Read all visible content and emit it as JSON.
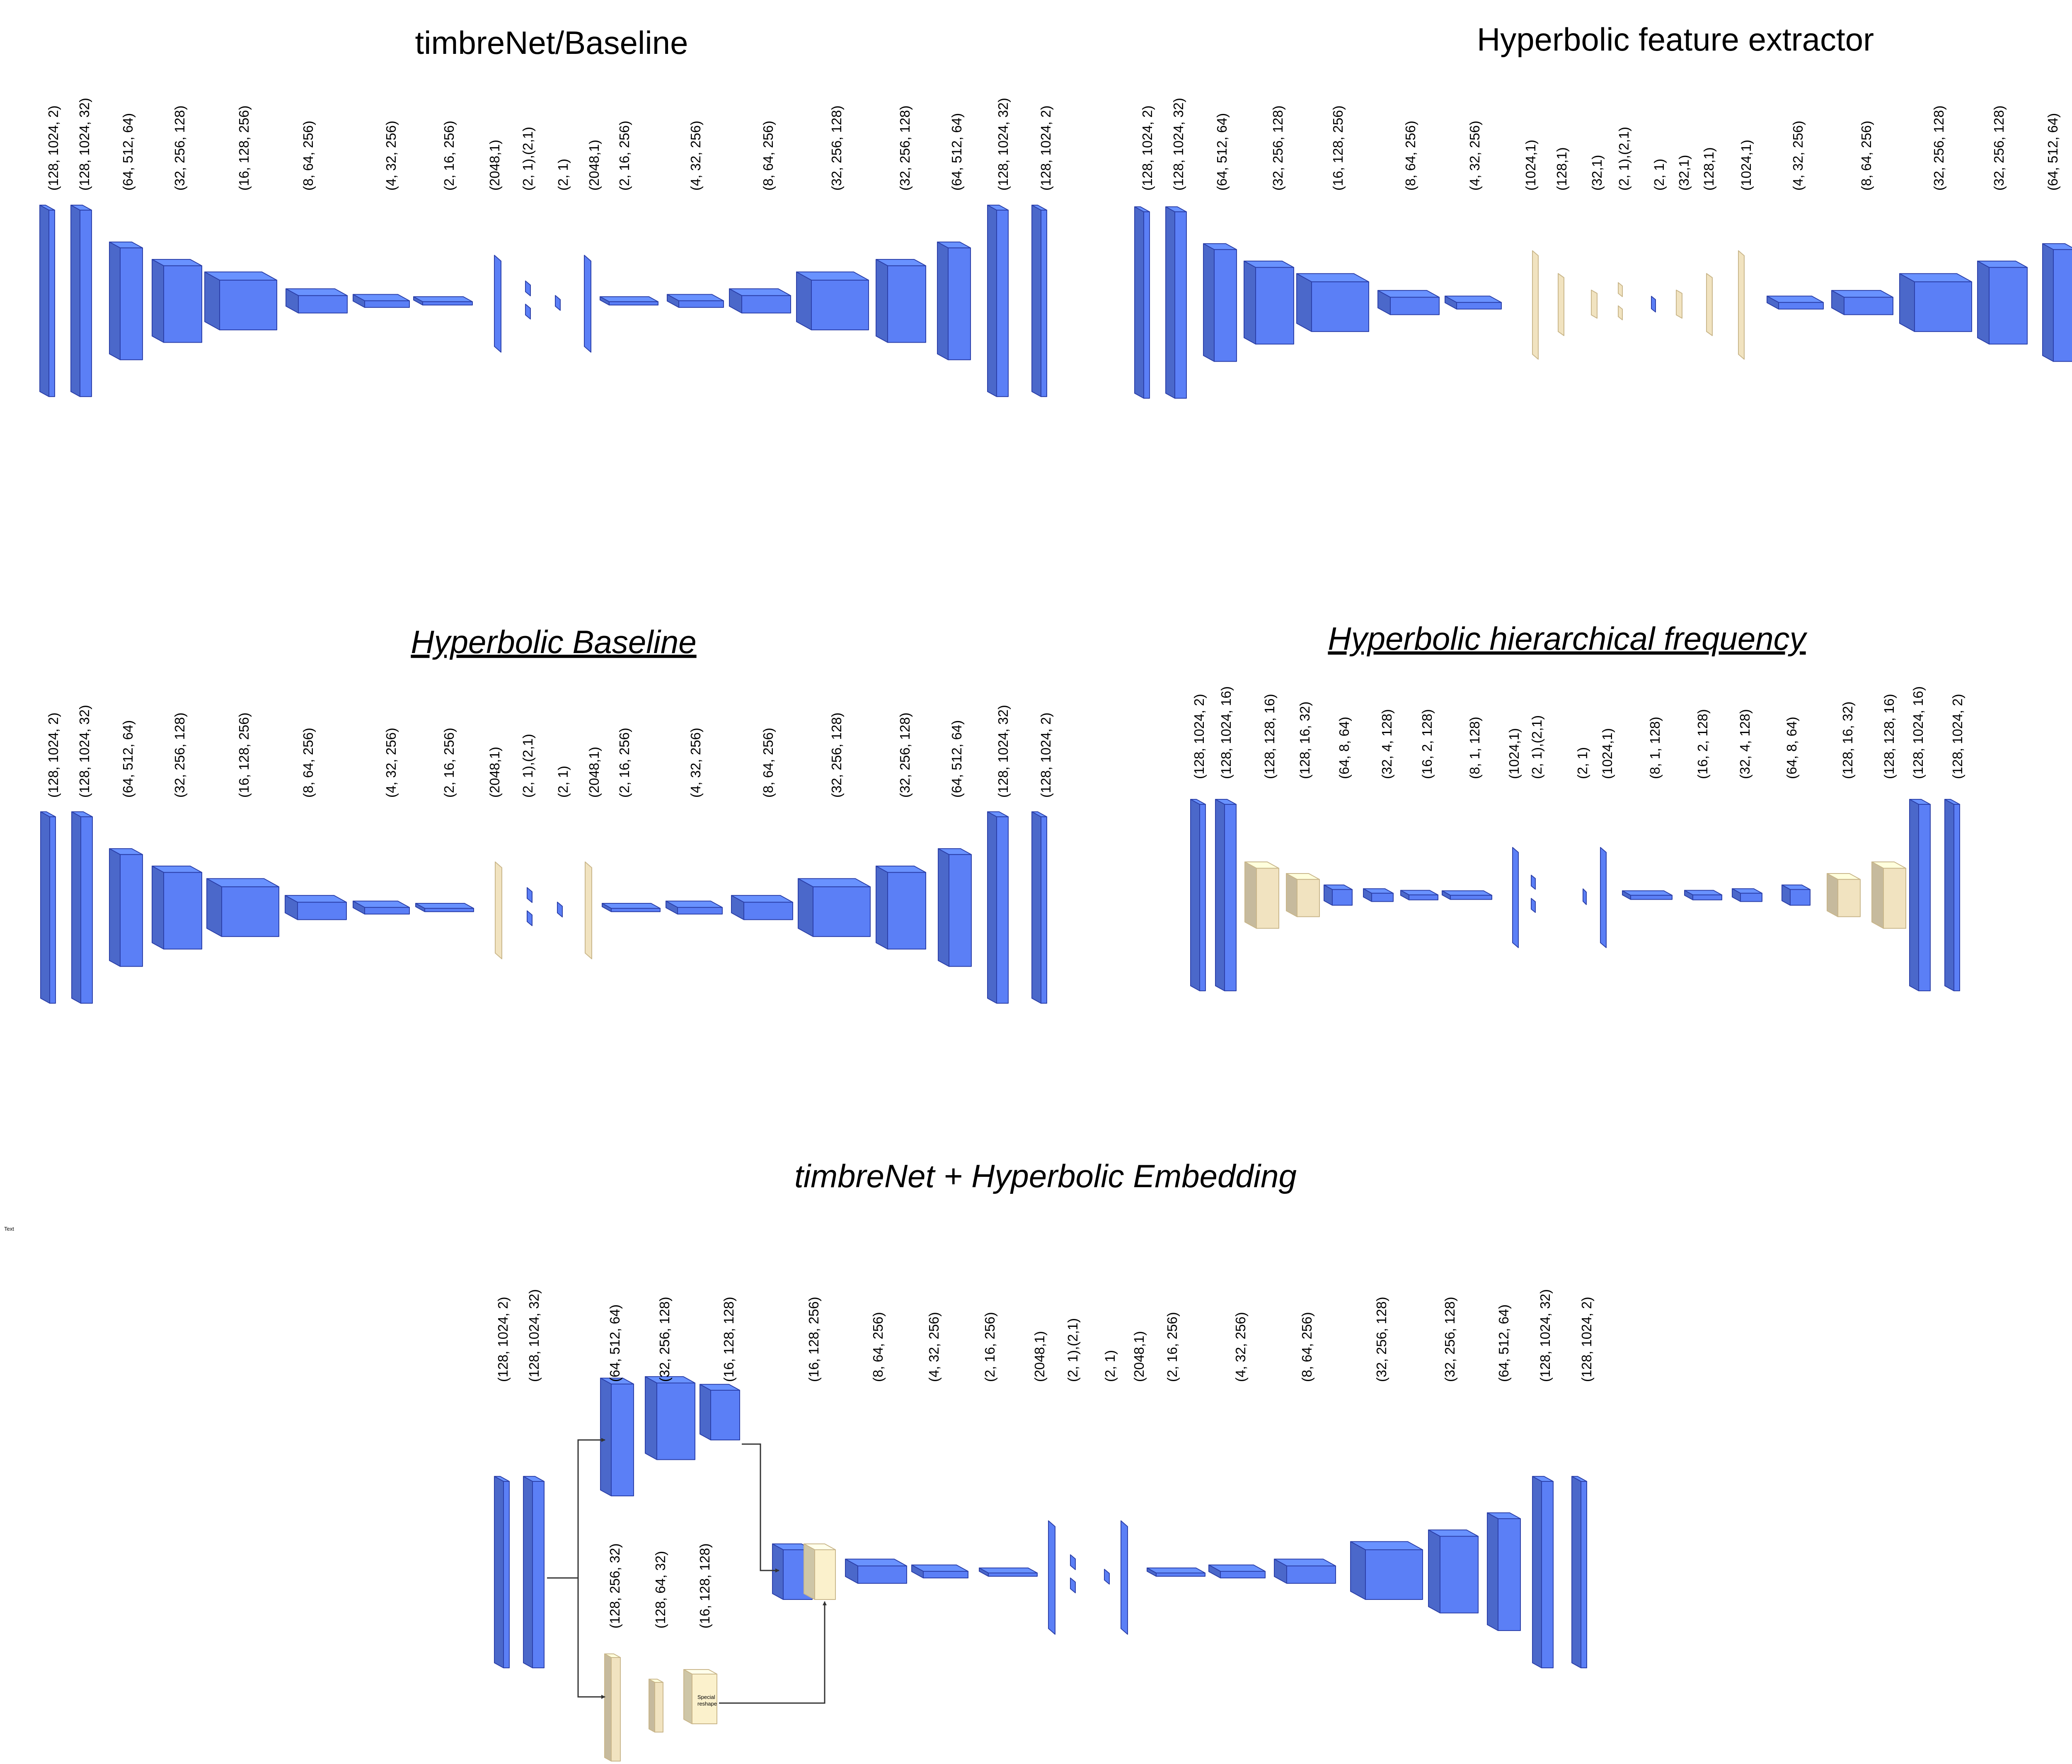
{
  "colors": {
    "blue": "#5B7FF6",
    "blue_stroke": "#2B3FA8",
    "beige": "#F1E3C0",
    "beige_stroke": "#C9B68A",
    "light": "#FBF1CC"
  },
  "diagrams": [
    {
      "title": "timbreNet/Baseline",
      "labels": [
        "(128, 1024, 2)",
        "(128, 1024, 32)",
        "(64, 512, 64)",
        "(32, 256, 128)",
        "(16, 128, 256)",
        "(8, 64, 256)",
        "(4, 32, 256)",
        "(2, 16, 256)",
        "(2048,1)",
        "(2, 1),(2,1)",
        "(2, 1)",
        "(2048,1)",
        "(2, 16, 256)",
        "(4, 32, 256)",
        "(8, 64, 256)",
        "(32, 256, 128)",
        "(32, 256, 128)",
        "(64, 512, 64)",
        "(128, 1024, 32)",
        "(128, 1024, 2)"
      ]
    },
    {
      "title": "Hyperbolic feature extractor",
      "labels": [
        "(128, 1024, 2)",
        "(128, 1024, 32)",
        "(64, 512, 64)",
        "(32, 256, 128)",
        "(16, 128, 256)",
        "(8, 64, 256)",
        "(4, 32, 256)",
        "(1024,1)",
        "(128,1)",
        "(32,1)",
        "(2, 1),(2,1)",
        "(2, 1)",
        "(32,1)",
        "(128,1)",
        "(1024,1)",
        "(4, 32, 256)",
        "(8, 64, 256)",
        "(32, 256, 128)",
        "(32, 256, 128)",
        "(64, 512, 64)",
        "(128, 1024, 32)",
        "(128, 1024, 2)"
      ]
    },
    {
      "title": "Hyperbolic Baseline",
      "labels": [
        "(128, 1024, 2)",
        "(128, 1024, 32)",
        "(64, 512, 64)",
        "(32, 256, 128)",
        "(16, 128, 256)",
        "(8, 64, 256)",
        "(4, 32, 256)",
        "(2, 16, 256)",
        "(2048,1)",
        "(2, 1),(2,1)",
        "(2, 1)",
        "(2048,1)",
        "(2, 16, 256)",
        "(4, 32, 256)",
        "(8, 64, 256)",
        "(32, 256, 128)",
        "(32, 256, 128)",
        "(64, 512, 64)",
        "(128, 1024, 32)",
        "(128, 1024, 2)"
      ]
    },
    {
      "title": "Hyperbolic hierarchical frequency",
      "labels": [
        "(128, 1024, 2)",
        "(128, 1024, 16)",
        "(128, 128, 16)",
        "(128, 16, 32)",
        "(64, 8, 64)",
        "(32, 4, 128)",
        "(16, 2, 128)",
        "(8, 1, 128)",
        "(1024,1)",
        "(2, 1),(2,1)",
        "(2, 1)",
        "(1024,1)",
        "(8, 1, 128)",
        "(16, 2, 128)",
        "(32, 4, 128)",
        "(64, 8, 64)",
        "(128, 16, 32)",
        "(128, 128, 16)",
        "(128, 1024, 16)",
        "(128, 1024, 2)"
      ]
    },
    {
      "title": "timbreNet + Hyperbolic Embedding",
      "labels": [
        "(128, 1024, 2)",
        "(128, 1024, 32)",
        "(64, 512, 64)",
        "(32, 256, 128)",
        "(16, 128, 128)",
        "(16, 128, 256)",
        "(8, 64, 256)",
        "(4, 32, 256)",
        "(2, 16, 256)",
        "(2048,1)",
        "(2, 1),(2,1)",
        "(2, 1)",
        "(2048,1)",
        "(2, 16, 256)",
        "(4, 32, 256)",
        "(8, 64, 256)",
        "(32, 256, 128)",
        "(32, 256, 128)",
        "(64, 512, 64)",
        "(128, 1024, 32)",
        "(128, 1024, 2)"
      ],
      "branch_labels": [
        "(128, 256, 32)",
        "(128, 64, 32)",
        "(16, 128, 128)"
      ],
      "reshape_note": [
        "Special",
        "reshape"
      ]
    }
  ],
  "side_note": "Text"
}
